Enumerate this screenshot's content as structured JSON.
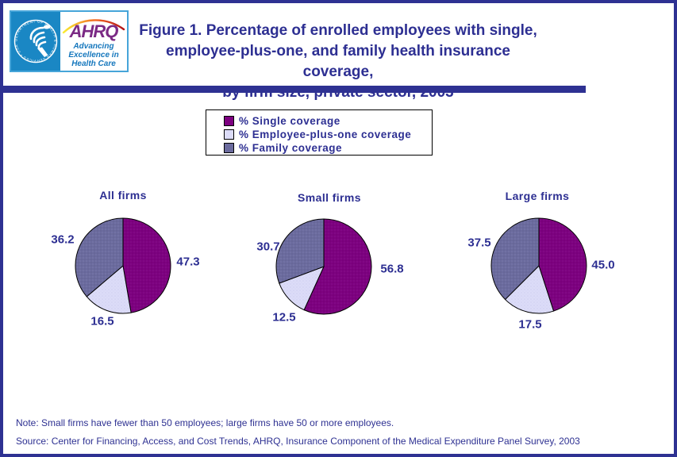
{
  "page": {
    "title_lines": [
      "Figure 1. Percentage of enrolled employees with single,",
      "employee-plus-one, and family health insurance coverage,",
      "by firm size, private sector, 2003"
    ],
    "note": "Note: Small firms have fewer than 50 employees; large firms have 50 or more employees.",
    "source": "Source: Center for Financing, Access, and Cost Trends, AHRQ, Insurance Component of the Medical Expenditure Panel Survey, 2003"
  },
  "logo": {
    "hhs_seal_text": "DEPARTMENT OF HEALTH & HUMAN SERVICES • USA",
    "ahrq_acronym": "AHRQ",
    "tagline_lines": [
      "Advancing",
      "Excellence in",
      "Health Care"
    ]
  },
  "legend": {
    "items": [
      {
        "label": "% Single coverage",
        "swatch_color": "#7d0180"
      },
      {
        "label": "% Employee-plus-one coverage",
        "swatch_color": "#dcdcf8"
      },
      {
        "label": "% Family coverage",
        "swatch_color": "#6b6b9e"
      }
    ]
  },
  "chart_data": [
    {
      "type": "pie",
      "title": "All firms",
      "categories": [
        "% Single coverage",
        "% Employee-plus-one coverage",
        "% Family coverage"
      ],
      "values": [
        47.3,
        16.5,
        36.2
      ],
      "value_labels": [
        "47.3",
        "16.5",
        "36.2"
      ],
      "colors": [
        "#7d0180",
        "#dcdcf8",
        "#6b6b9e"
      ],
      "start_angle_deg": 0,
      "direction": "clockwise"
    },
    {
      "type": "pie",
      "title": "Small firms",
      "categories": [
        "% Single coverage",
        "% Employee-plus-one coverage",
        "% Family coverage"
      ],
      "values": [
        56.8,
        12.5,
        30.7
      ],
      "value_labels": [
        "56.8",
        "12.5",
        "30.7"
      ],
      "colors": [
        "#7d0180",
        "#dcdcf8",
        "#6b6b9e"
      ],
      "start_angle_deg": 0,
      "direction": "clockwise"
    },
    {
      "type": "pie",
      "title": "Large firms",
      "categories": [
        "% Single coverage",
        "% Employee-plus-one coverage",
        "% Family coverage"
      ],
      "values": [
        45.0,
        17.5,
        37.5
      ],
      "value_labels": [
        "45.0",
        "17.5",
        "37.5"
      ],
      "colors": [
        "#7d0180",
        "#dcdcf8",
        "#6b6b9e"
      ],
      "start_angle_deg": 0,
      "direction": "clockwise"
    }
  ],
  "colors": {
    "accent_navy": "#2e3192",
    "hhs_blue": "#1a87c4",
    "ahrq_purple": "#7b2a85",
    "tagline_blue": "#1577bd"
  }
}
